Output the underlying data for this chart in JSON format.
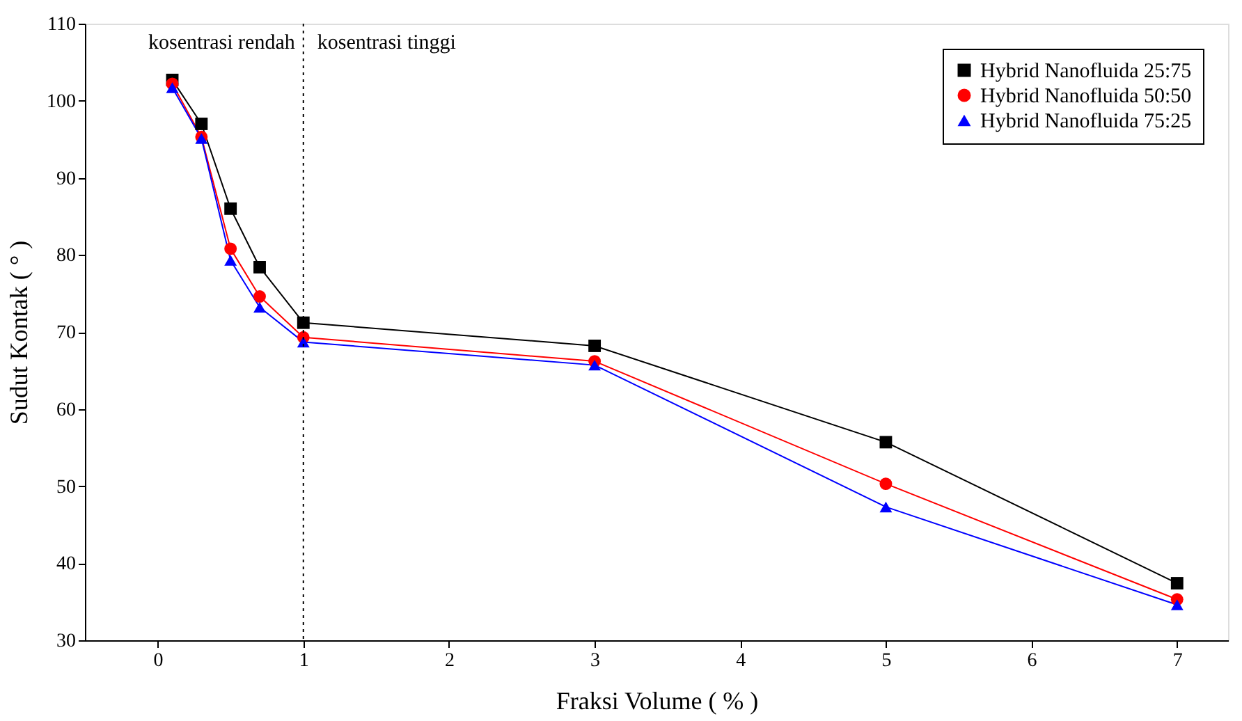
{
  "chart_data": {
    "type": "line",
    "xlabel": "Fraksi Volume ( % )",
    "ylabel": "Sudut Kontak ( ° )",
    "x": [
      0.1,
      0.3,
      0.5,
      0.7,
      1,
      3,
      5,
      7
    ],
    "series": [
      {
        "name": "Hybrid Nanofluida 25:75",
        "color": "#000000",
        "marker": "square",
        "values": [
          102.7,
          97.0,
          86.0,
          78.4,
          71.2,
          68.2,
          55.7,
          37.4
        ]
      },
      {
        "name": "Hybrid Nanofluida 50:50",
        "color": "#ff0000",
        "marker": "circle",
        "values": [
          102.2,
          95.3,
          80.8,
          74.6,
          69.3,
          66.2,
          50.3,
          35.3
        ]
      },
      {
        "name": "Hybrid Nanofluida 75:25",
        "color": "#0000ff",
        "marker": "triangle",
        "values": [
          101.7,
          95.1,
          79.3,
          73.2,
          68.7,
          65.7,
          47.3,
          34.6
        ]
      }
    ],
    "xlim": [
      -0.5,
      7.35
    ],
    "xticks": [
      0,
      1,
      2,
      3,
      4,
      5,
      6,
      7
    ],
    "ylim": [
      30,
      110
    ],
    "yticks": [
      30,
      40,
      50,
      60,
      70,
      80,
      90,
      100,
      110
    ],
    "grid": false,
    "legend": "top right",
    "line_style": "solid",
    "ref_lines": [
      {
        "axis": "x",
        "value": 1,
        "line_style": "dotted",
        "color": "#000000"
      }
    ],
    "annotations": [
      "kosentrasi rendah",
      "kosentrasi tinggi"
    ]
  }
}
